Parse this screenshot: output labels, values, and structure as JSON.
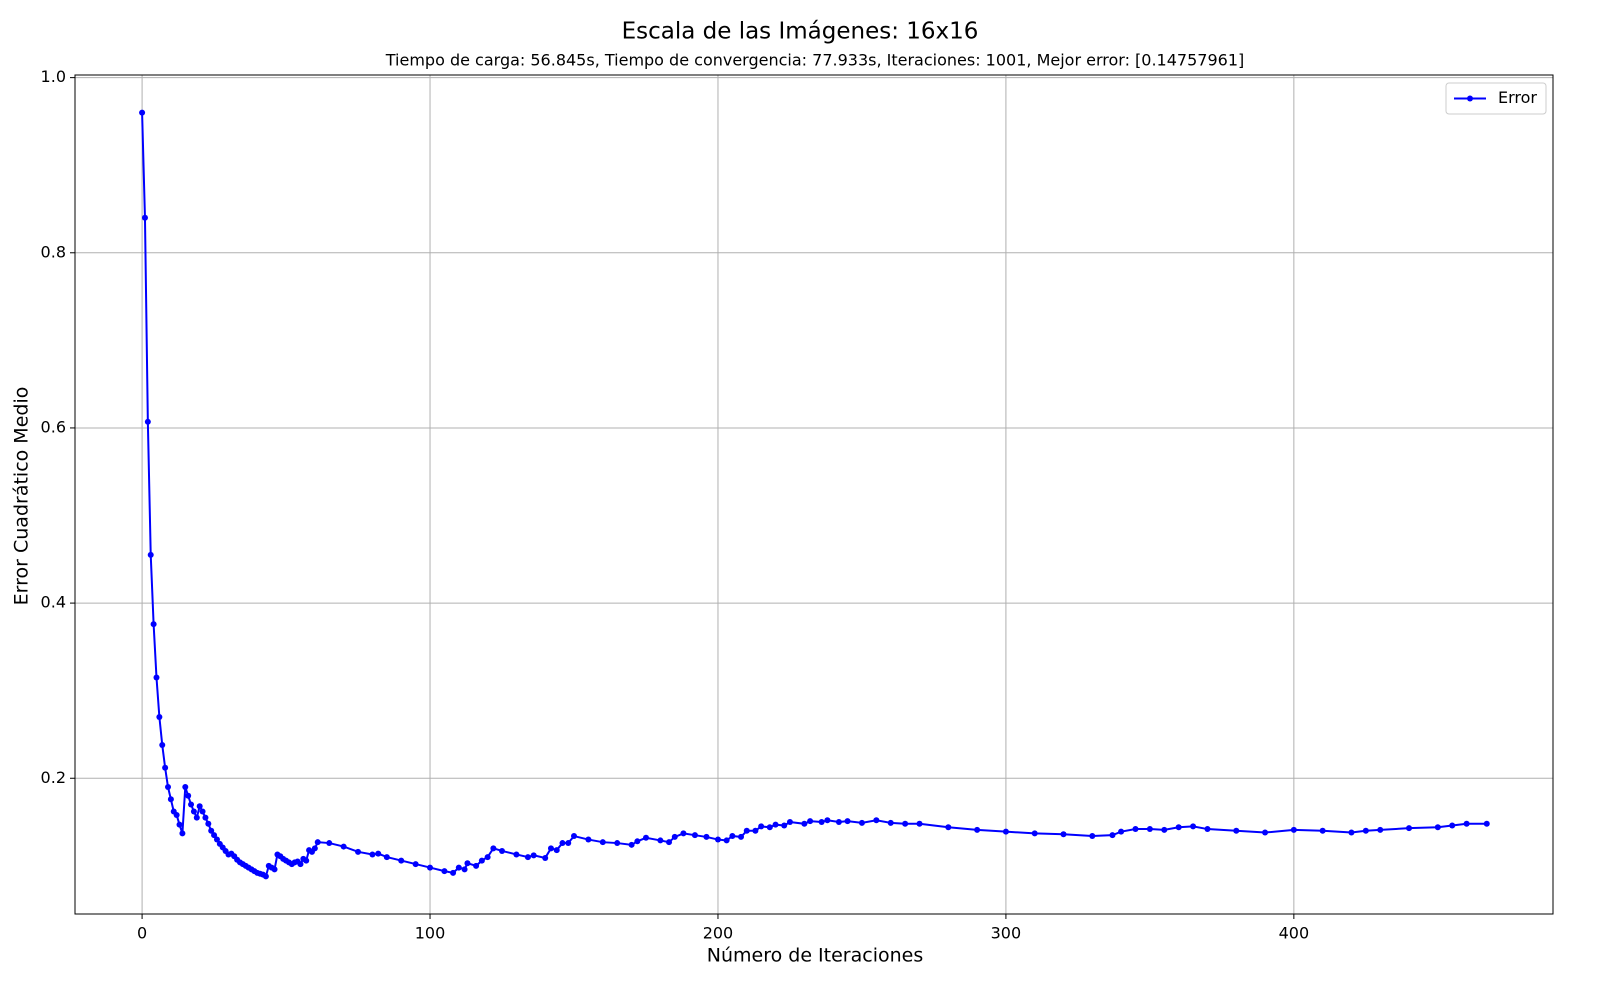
{
  "chart_data": {
    "type": "line",
    "title": "Escala de las Imágenes: 16x16",
    "subtitle": "Tiempo de carga: 56.845s, Tiempo de convergencia: 77.933s, Iteraciones: 1001, Mejor error: [0.14757961]",
    "x_label": "Número de Iteraciones",
    "y_label": "Error Cuadrático Medio",
    "x": [
      0,
      1,
      2,
      3,
      4,
      5,
      6,
      7,
      8,
      9,
      10,
      11,
      12,
      13,
      14,
      15,
      16,
      17,
      18,
      19,
      20,
      21,
      22,
      23,
      24,
      25,
      26,
      27,
      28,
      29,
      30,
      31,
      32,
      33,
      34,
      35,
      36,
      37,
      38,
      39,
      40,
      41,
      42,
      43,
      44,
      45,
      46,
      47,
      48,
      49,
      50,
      51,
      52,
      53,
      54,
      55,
      56,
      57,
      58,
      59,
      60,
      61,
      65,
      70,
      75,
      80,
      82,
      85,
      90,
      95,
      100,
      105,
      108,
      110,
      112,
      113,
      116,
      118,
      120,
      122,
      125,
      130,
      134,
      136,
      140,
      142,
      144,
      146,
      148,
      150,
      155,
      160,
      165,
      170,
      172,
      175,
      180,
      183,
      185,
      188,
      192,
      196,
      200,
      203,
      205,
      208,
      210,
      213,
      215,
      218,
      220,
      223,
      225,
      230,
      232,
      236,
      238,
      242,
      245,
      250,
      255,
      260,
      265,
      270,
      280,
      290,
      300,
      310,
      320,
      330,
      337,
      340,
      345,
      350,
      355,
      360,
      365,
      370,
      380,
      390,
      400,
      410,
      420,
      425,
      430,
      440,
      450,
      455,
      460,
      467
    ],
    "series": [
      {
        "name": "Error",
        "color": "#0000ff",
        "values": [
          0.96,
          0.84,
          0.607,
          0.455,
          0.376,
          0.315,
          0.27,
          0.238,
          0.212,
          0.19,
          0.176,
          0.162,
          0.158,
          0.147,
          0.137,
          0.19,
          0.18,
          0.17,
          0.162,
          0.155,
          0.168,
          0.162,
          0.155,
          0.148,
          0.14,
          0.135,
          0.13,
          0.125,
          0.121,
          0.117,
          0.113,
          0.114,
          0.111,
          0.107,
          0.104,
          0.102,
          0.1,
          0.098,
          0.096,
          0.094,
          0.092,
          0.091,
          0.09,
          0.088,
          0.1,
          0.098,
          0.096,
          0.113,
          0.111,
          0.108,
          0.106,
          0.104,
          0.102,
          0.104,
          0.105,
          0.102,
          0.108,
          0.106,
          0.118,
          0.116,
          0.12,
          0.127,
          0.126,
          0.122,
          0.116,
          0.113,
          0.114,
          0.11,
          0.106,
          0.102,
          0.098,
          0.094,
          0.092,
          0.098,
          0.096,
          0.103,
          0.1,
          0.106,
          0.11,
          0.12,
          0.117,
          0.113,
          0.11,
          0.112,
          0.109,
          0.12,
          0.118,
          0.126,
          0.126,
          0.134,
          0.13,
          0.127,
          0.126,
          0.124,
          0.128,
          0.132,
          0.129,
          0.127,
          0.133,
          0.137,
          0.135,
          0.133,
          0.13,
          0.129,
          0.134,
          0.133,
          0.14,
          0.14,
          0.145,
          0.144,
          0.147,
          0.146,
          0.15,
          0.148,
          0.151,
          0.15,
          0.152,
          0.15,
          0.151,
          0.149,
          0.152,
          0.149,
          0.148,
          0.148,
          0.144,
          0.141,
          0.139,
          0.137,
          0.136,
          0.134,
          0.135,
          0.139,
          0.142,
          0.142,
          0.141,
          0.144,
          0.145,
          0.142,
          0.14,
          0.138,
          0.141,
          0.14,
          0.138,
          0.14,
          0.141,
          0.143,
          0.144,
          0.146,
          0.148,
          0.148
        ]
      }
    ],
    "xlim": [
      -23.3,
      490
    ],
    "ylim": [
      0.045,
      1.003
    ],
    "xticks": [
      0,
      100,
      200,
      300,
      400
    ],
    "yticks": [
      0.2,
      0.4,
      0.6,
      0.8,
      {
        "value": 1,
        "label": "1.0"
      }
    ],
    "grid": true,
    "legend": "upper right"
  }
}
